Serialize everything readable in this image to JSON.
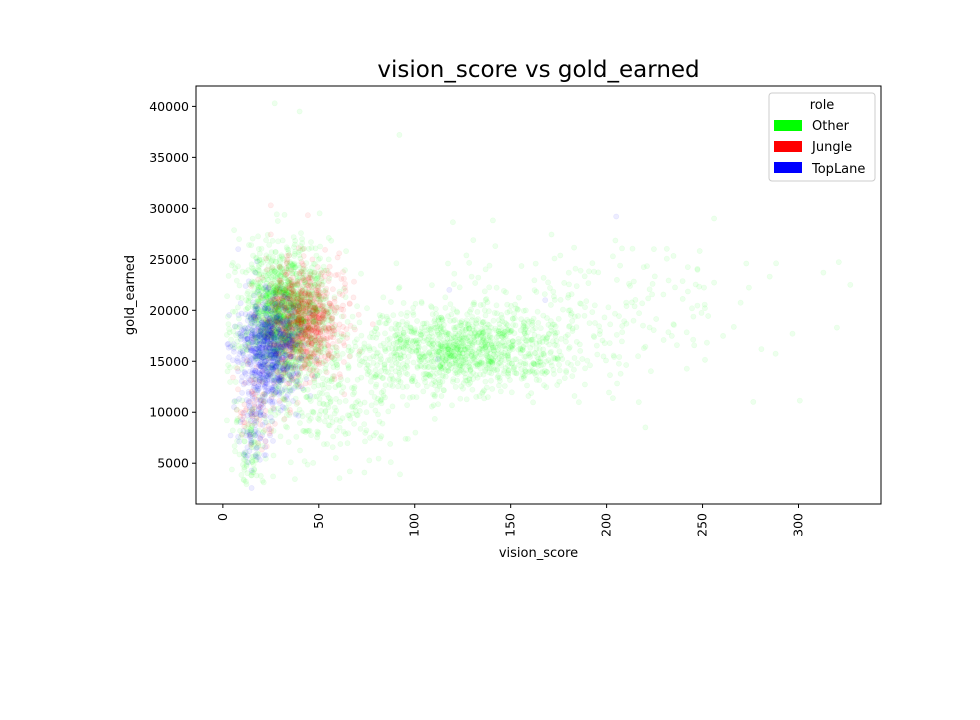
{
  "chart_data": {
    "type": "scatter",
    "title": "vision_score vs gold_earned",
    "xlabel": "vision_score",
    "ylabel": "gold_earned",
    "xlim": [
      -14,
      343
    ],
    "ylim": [
      1000,
      42000
    ],
    "x_ticks": [
      0,
      50,
      100,
      150,
      200,
      250,
      300
    ],
    "y_ticks": [
      5000,
      10000,
      15000,
      20000,
      25000,
      30000,
      35000,
      40000
    ],
    "grid": false,
    "point_alpha": 0.07,
    "legend": {
      "title": "role",
      "position": "top-right",
      "entries": [
        {
          "label": "Other",
          "color": "#00ff00"
        },
        {
          "label": "Jungle",
          "color": "#ff0000"
        },
        {
          "label": "TopLane",
          "color": "#0000ff"
        }
      ]
    },
    "series": [
      {
        "name": "Other",
        "color": "#00ff00",
        "clusters": [
          {
            "x_mean": 33,
            "x_sd": 11,
            "y_mean": 19500,
            "y_sd": 3300,
            "count": 1600
          },
          {
            "x_mean": 125,
            "x_sd": 28,
            "y_mean": 16000,
            "y_sd": 2000,
            "count": 1100
          },
          {
            "x_mean": 180,
            "x_sd": 50,
            "y_mean": 20000,
            "y_sd": 3800,
            "count": 260
          },
          {
            "x_mean": 60,
            "x_sd": 25,
            "y_mean": 11000,
            "y_sd": 3500,
            "count": 260
          },
          {
            "x_mean": 15,
            "x_sd": 4,
            "y_mean": 7000,
            "y_sd": 2000,
            "count": 90
          }
        ],
        "sample_points": [
          {
            "x": 27,
            "y": 40300
          },
          {
            "x": 40,
            "y": 39500
          },
          {
            "x": 92,
            "y": 37200
          },
          {
            "x": 313,
            "y": 23700
          },
          {
            "x": 327,
            "y": 22500
          },
          {
            "x": 320,
            "y": 18300
          },
          {
            "x": 285,
            "y": 23300
          },
          {
            "x": 12,
            "y": 3200
          },
          {
            "x": 256,
            "y": 29000
          }
        ]
      },
      {
        "name": "Jungle",
        "color": "#ff0000",
        "clusters": [
          {
            "x_mean": 42,
            "x_sd": 10,
            "y_mean": 18800,
            "y_sd": 2800,
            "count": 850
          },
          {
            "x_mean": 18,
            "x_sd": 6,
            "y_mean": 10500,
            "y_sd": 2500,
            "count": 70
          }
        ],
        "sample_points": [
          {
            "x": 25,
            "y": 30300
          },
          {
            "x": 60,
            "y": 23500
          },
          {
            "x": 10,
            "y": 7800
          }
        ]
      },
      {
        "name": "TopLane",
        "color": "#0000ff",
        "clusters": [
          {
            "x_mean": 24,
            "x_sd": 8,
            "y_mean": 16300,
            "y_sd": 2600,
            "count": 800
          },
          {
            "x_mean": 16,
            "x_sd": 4,
            "y_mean": 8500,
            "y_sd": 1800,
            "count": 80
          }
        ],
        "sample_points": [
          {
            "x": 8,
            "y": 26000
          },
          {
            "x": 118,
            "y": 22000
          },
          {
            "x": 205,
            "y": 29200
          },
          {
            "x": 168,
            "y": 21000
          },
          {
            "x": 112,
            "y": 15200
          },
          {
            "x": 15,
            "y": 4300
          }
        ]
      }
    ]
  }
}
